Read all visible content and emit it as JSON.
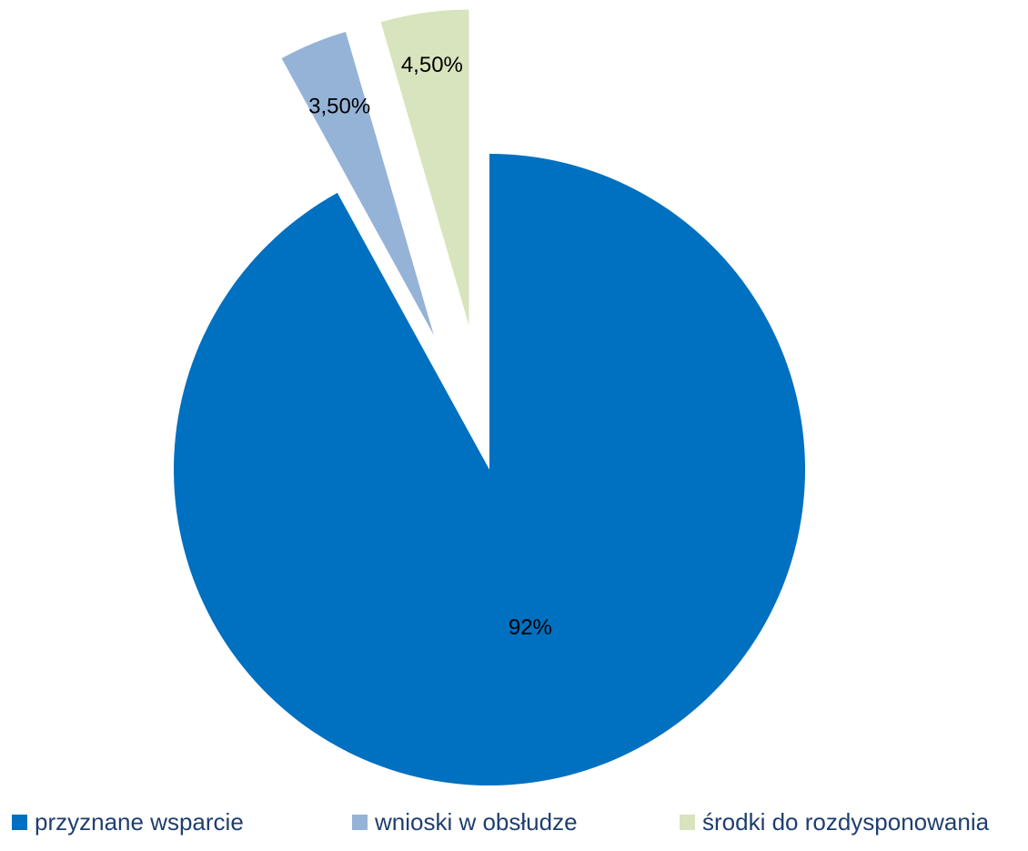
{
  "chart_data": {
    "type": "pie",
    "title": "",
    "slices": [
      {
        "label": "przyznane wsparcie",
        "value": 92,
        "value_label": "92%",
        "color": "#0070c0",
        "exploded": false
      },
      {
        "label": "wnioski w obsłudze",
        "value": 3.5,
        "value_label": "3,50%",
        "color": "#95b3d7",
        "exploded": true
      },
      {
        "label": "środki do rozdysponowania",
        "value": 4.5,
        "value_label": "4,50%",
        "color": "#d7e4bd",
        "exploded": true
      }
    ],
    "start_angle_deg": 0,
    "direction": "clockwise",
    "legend_position": "bottom"
  }
}
